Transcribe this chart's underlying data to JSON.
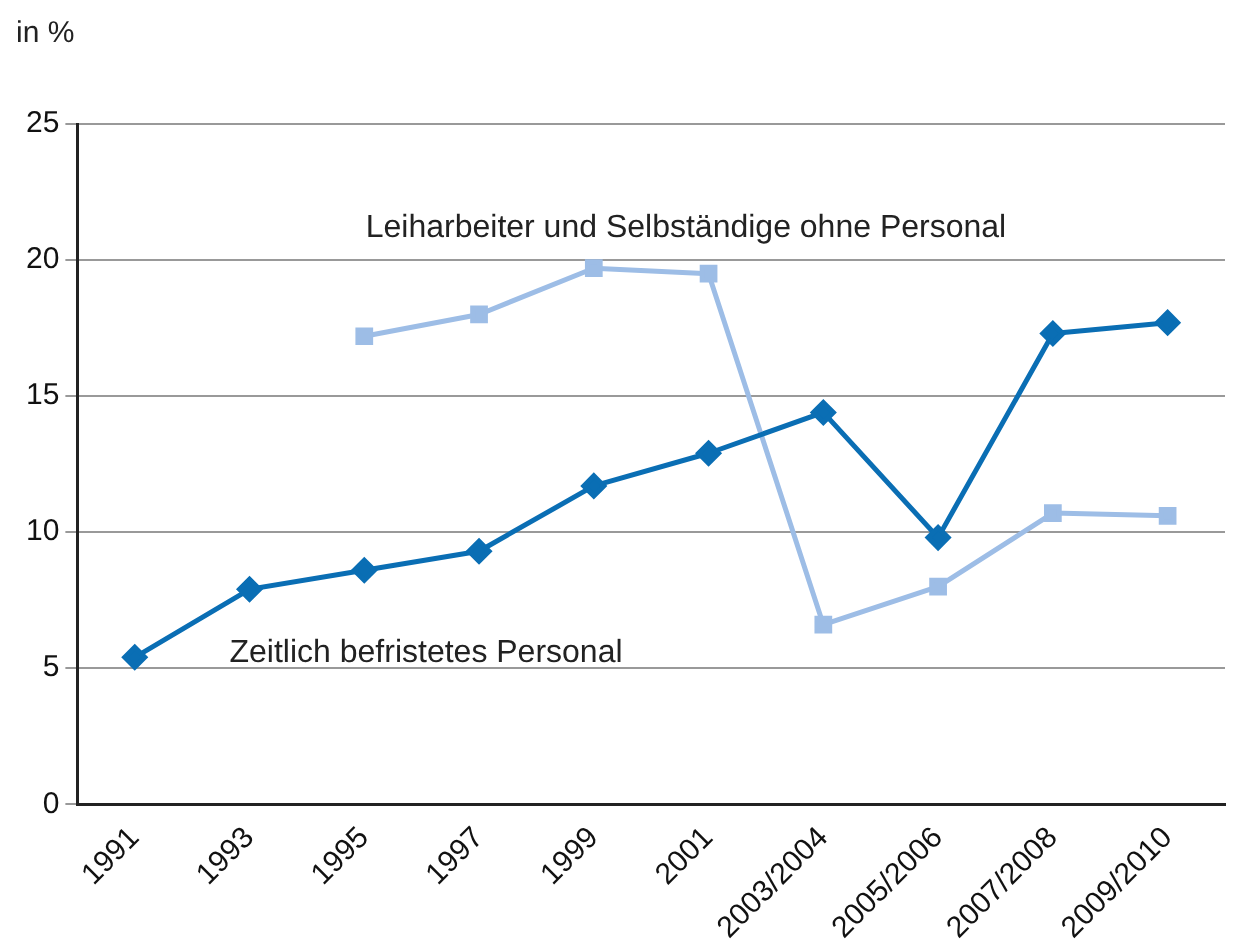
{
  "chart_data": {
    "type": "line",
    "ylabel": "in %",
    "categories": [
      "1991",
      "1993",
      "1995",
      "1997",
      "1999",
      "2001",
      "2003/2004",
      "2005/2006",
      "2007/2008",
      "2009/2010"
    ],
    "series": [
      {
        "name": "Zeitlich befristetes Personal",
        "color": "#0a6eb4",
        "marker": "diamond",
        "values": [
          5.4,
          7.9,
          8.6,
          9.3,
          11.7,
          12.9,
          14.4,
          9.8,
          17.3,
          17.7
        ]
      },
      {
        "name": "Leiharbeiter und Selbständige ohne Personal",
        "color": "#9dbde6",
        "marker": "square",
        "values": [
          null,
          null,
          17.2,
          18.0,
          19.7,
          19.5,
          6.6,
          8.0,
          10.7,
          10.6
        ]
      }
    ],
    "ylim": [
      0,
      25
    ],
    "yticks": [
      0,
      5,
      10,
      15,
      20,
      25
    ],
    "grid": "y",
    "legend": false,
    "line_style": "solid"
  }
}
